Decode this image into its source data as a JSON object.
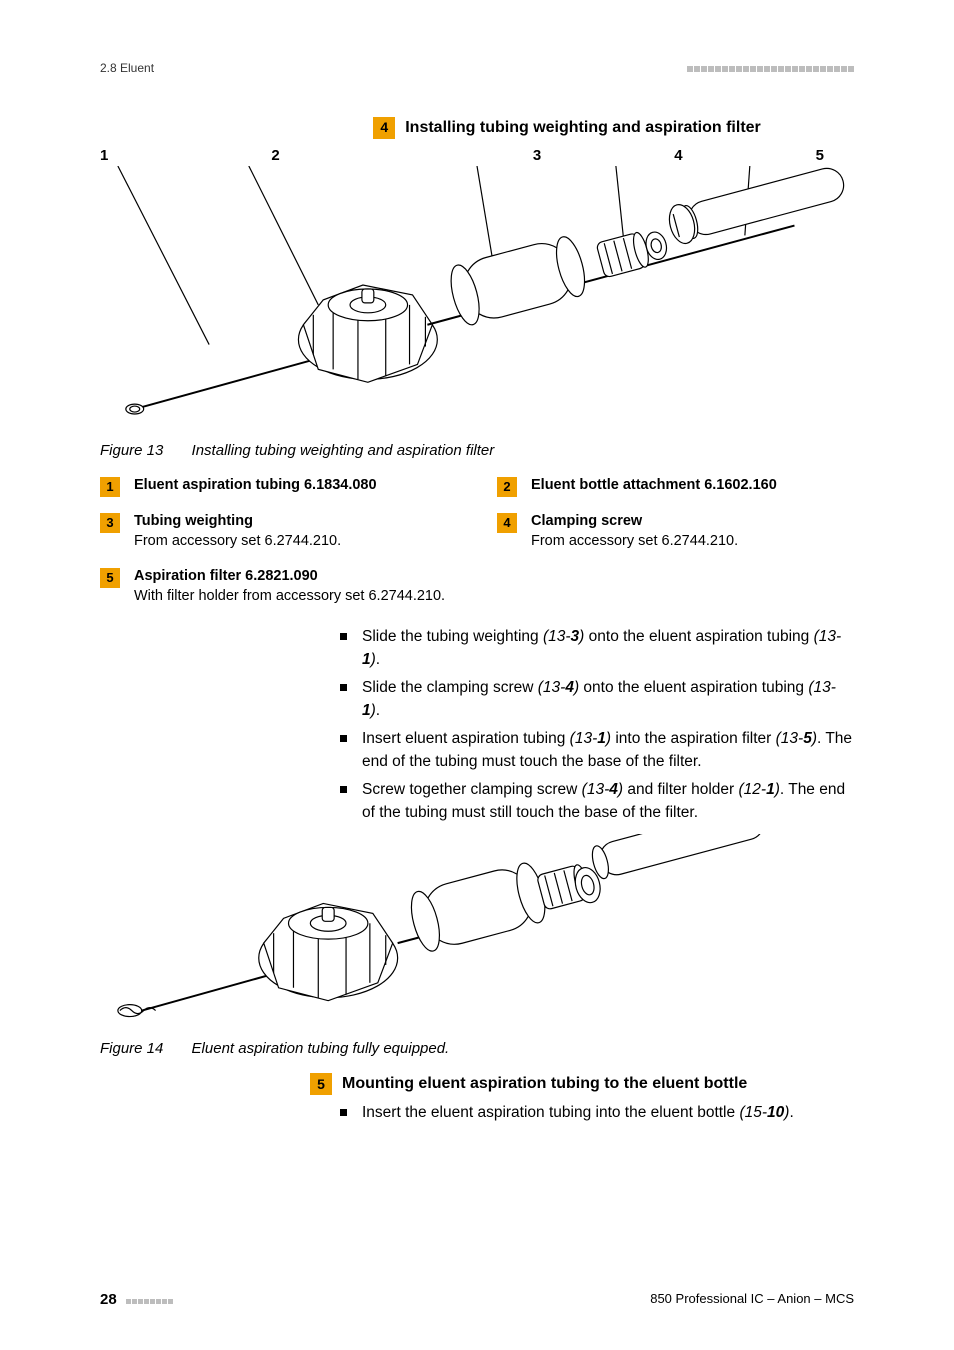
{
  "header": {
    "section": "2.8 Eluent",
    "dash_count": 24,
    "dash_color": "#bdbdbd"
  },
  "step4": {
    "num": "4",
    "title": "Installing tubing weighting and aspiration filter",
    "callouts": [
      "1",
      "2",
      "3",
      "4",
      "5"
    ]
  },
  "figure13": {
    "label": "Figure 13",
    "caption": "Installing tubing weighting and aspiration filter",
    "stroke": "#000000",
    "stroke_width": 1.2,
    "fill": "#ffffff"
  },
  "legend": [
    {
      "num": "1",
      "title": "Eluent aspiration tubing 6.1834.080",
      "sub": ""
    },
    {
      "num": "2",
      "title": "Eluent bottle attachment 6.1602.160",
      "sub": ""
    },
    {
      "num": "3",
      "title": "Tubing weighting",
      "sub": "From accessory set 6.2744.210."
    },
    {
      "num": "4",
      "title": "Clamping screw",
      "sub": "From accessory set 6.2744.210."
    },
    {
      "num": "5",
      "title": "Aspiration filter 6.2821.090",
      "sub": "With filter holder from accessory set 6.2744.210."
    }
  ],
  "bullets4": [
    {
      "pre": "Slide the tubing weighting ",
      "ref": "(13-3)",
      "post": " onto the eluent aspiration tubing ",
      "ref2": "(13-1)",
      "tail": "."
    },
    {
      "pre": "Slide the clamping screw ",
      "ref": "(13-4)",
      "post": " onto the eluent aspiration tubing ",
      "ref2": "(13-1)",
      "tail": "."
    },
    {
      "pre": "Insert eluent aspiration tubing ",
      "ref": "(13-1)",
      "post": " into the aspiration filter ",
      "ref2": "(13-5)",
      "tail": ". The end of the tubing must touch the base of the filter."
    },
    {
      "pre": "Screw together clamping screw ",
      "ref": "(13-4)",
      "post": " and filter holder ",
      "ref2": "(12-1)",
      "tail": ". The end of the tubing must still touch the base of the filter."
    }
  ],
  "figure14": {
    "label": "Figure 14",
    "caption": "Eluent aspiration tubing fully equipped.",
    "stroke": "#000000",
    "stroke_width": 1.2,
    "fill": "#ffffff"
  },
  "step5": {
    "num": "5",
    "title": "Mounting eluent aspiration tubing to the eluent bottle"
  },
  "bullets5": [
    {
      "pre": "Insert the eluent aspiration tubing into the eluent bottle ",
      "ref": "(15-10)",
      "post": "",
      "ref2": "",
      "tail": "."
    }
  ],
  "footer": {
    "page": "28",
    "dash_count": 8,
    "product": "850 Professional IC – Anion – MCS"
  },
  "colors": {
    "accent": "#f0a000",
    "text": "#000000",
    "muted": "#555555"
  }
}
